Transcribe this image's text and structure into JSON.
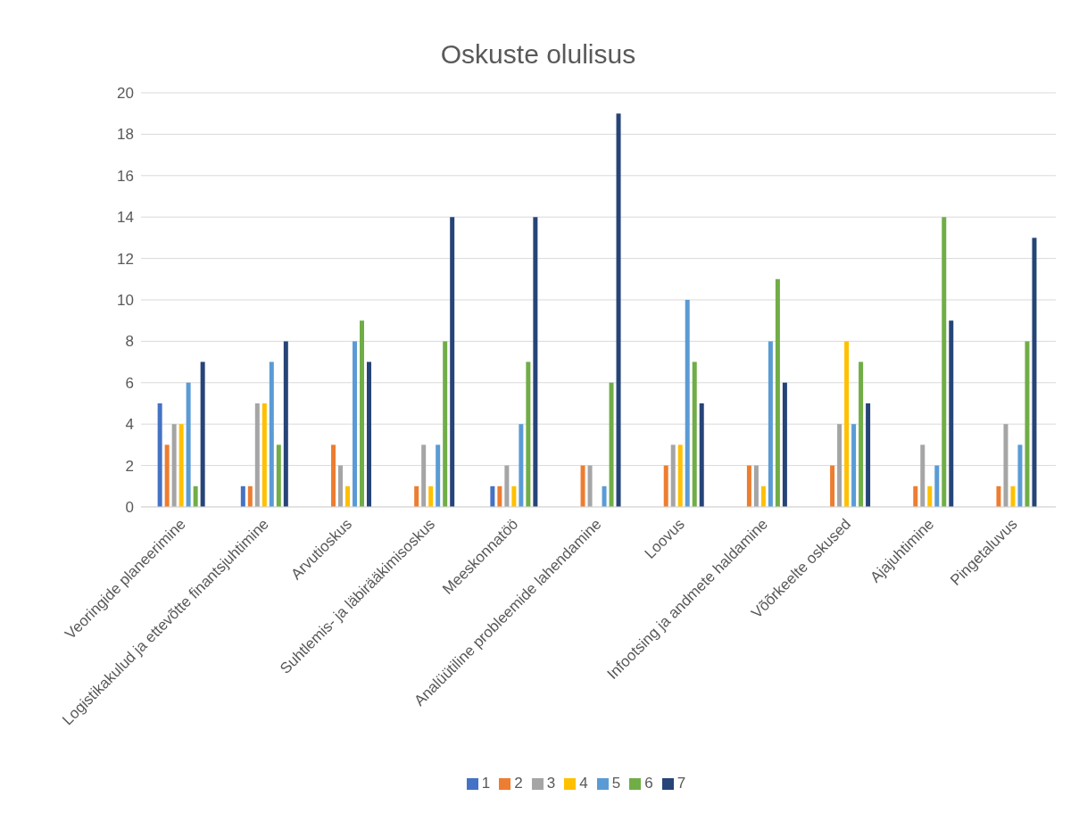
{
  "chart_data": {
    "type": "bar",
    "title": "Oskuste olulisus",
    "categories": [
      "Veoringide planeerimine",
      "Logistikakulud ja ettevõtte finantsjuhtimine",
      "Arvutioskus",
      "Suhtlemis- ja läbirääkimisoskus",
      "Meeskonnatöö",
      "Analüütiline probleemide lahendamine",
      "Loovus",
      "Infootsing ja andmete haldamine",
      "Võõrkeelte oskused",
      "Ajajuhtimine",
      "Pingetaluvus"
    ],
    "series": [
      {
        "name": "1",
        "color": "#4472c4",
        "values": [
          5,
          1,
          null,
          null,
          1,
          null,
          null,
          null,
          null,
          null,
          null
        ]
      },
      {
        "name": "2",
        "color": "#ed7d31",
        "values": [
          3,
          1,
          3,
          1,
          1,
          2,
          2,
          2,
          2,
          1,
          1
        ]
      },
      {
        "name": "3",
        "color": "#a5a5a5",
        "values": [
          4,
          5,
          2,
          3,
          2,
          2,
          3,
          2,
          4,
          3,
          4
        ]
      },
      {
        "name": "4",
        "color": "#ffc000",
        "values": [
          4,
          5,
          1,
          1,
          1,
          null,
          3,
          1,
          8,
          1,
          1
        ]
      },
      {
        "name": "5",
        "color": "#5b9bd5",
        "values": [
          6,
          7,
          8,
          3,
          4,
          1,
          10,
          8,
          4,
          2,
          3
        ]
      },
      {
        "name": "6",
        "color": "#70ad47",
        "values": [
          1,
          3,
          9,
          8,
          7,
          6,
          7,
          11,
          7,
          14,
          8
        ]
      },
      {
        "name": "7",
        "color": "#264478",
        "values": [
          7,
          8,
          7,
          14,
          14,
          19,
          5,
          6,
          5,
          9,
          13
        ]
      }
    ],
    "ylim": [
      0,
      20
    ],
    "yticks": [
      0,
      2,
      4,
      6,
      8,
      10,
      12,
      14,
      16,
      18,
      20
    ],
    "grid": "y",
    "legend": "bottom"
  }
}
